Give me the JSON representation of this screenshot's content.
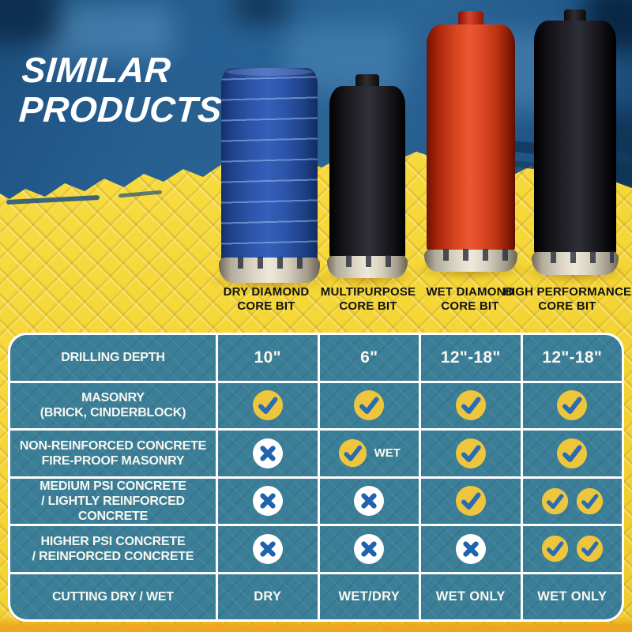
{
  "title": {
    "line1": "SIMILAR",
    "line2": "PRODUCTS"
  },
  "products": [
    {
      "line1": "DRY DIAMOND",
      "line2": "CORE BIT",
      "color": "blue"
    },
    {
      "line1": "MULTIPURPOSE",
      "line2": "CORE BIT",
      "color": "black"
    },
    {
      "line1": "WET DIAMOND",
      "line2": "CORE BIT",
      "color": "red"
    },
    {
      "line1": "HIGH PERFORMANCE",
      "line2": "CORE BIT",
      "color": "black"
    }
  ],
  "table": {
    "columns": [
      "DRY DIAMOND CORE BIT",
      "MULTIPURPOSE CORE BIT",
      "WET DIAMOND CORE BIT",
      "HIGH PERFORMANCE CORE BIT"
    ],
    "rows": [
      {
        "label": "DRILLING DEPTH",
        "label2": "",
        "cells": [
          {
            "type": "text",
            "value": "10\"",
            "size": "lg"
          },
          {
            "type": "text",
            "value": "6\"",
            "size": "lg"
          },
          {
            "type": "text",
            "value": "12\"-18\"",
            "size": "lg"
          },
          {
            "type": "text",
            "value": "12\"-18\"",
            "size": "lg"
          }
        ]
      },
      {
        "label": "MASONRY",
        "label2": "(BRICK, CINDERBLOCK)",
        "cells": [
          {
            "type": "check"
          },
          {
            "type": "check"
          },
          {
            "type": "check"
          },
          {
            "type": "check"
          }
        ]
      },
      {
        "label": "NON-REINFORCED CONCRETE",
        "label2": "FIRE-PROOF MASONRY",
        "cells": [
          {
            "type": "cross"
          },
          {
            "type": "check_text",
            "value": "WET"
          },
          {
            "type": "check"
          },
          {
            "type": "check"
          }
        ]
      },
      {
        "label": "MEDIUM PSI CONCRETE",
        "label2": "/ LIGHTLY REINFORCED CONCRETE",
        "cells": [
          {
            "type": "cross"
          },
          {
            "type": "cross"
          },
          {
            "type": "check"
          },
          {
            "type": "check2"
          }
        ]
      },
      {
        "label": "HIGHER PSI CONCRETE",
        "label2": "/ REINFORCED CONCRETE",
        "cells": [
          {
            "type": "cross"
          },
          {
            "type": "cross"
          },
          {
            "type": "cross"
          },
          {
            "type": "check2"
          }
        ]
      },
      {
        "label": "CUTTING DRY / WET",
        "label2": "",
        "cells": [
          {
            "type": "text",
            "value": "DRY",
            "size": "sm"
          },
          {
            "type": "text",
            "value": "WET/DRY",
            "size": "sm"
          },
          {
            "type": "text",
            "value": "WET ONLY",
            "size": "sm"
          },
          {
            "type": "text",
            "value": "WET ONLY",
            "size": "sm"
          }
        ]
      }
    ]
  },
  "chart_data": {
    "type": "table",
    "title": "SIMILAR PRODUCTS",
    "columns": [
      "",
      "DRY DIAMOND CORE BIT",
      "MULTIPURPOSE CORE BIT",
      "WET DIAMOND CORE BIT",
      "HIGH PERFORMANCE CORE BIT"
    ],
    "rows": [
      [
        "DRILLING DEPTH",
        "10\"",
        "6\"",
        "12\"-18\"",
        "12\"-18\""
      ],
      [
        "MASONRY (BRICK, CINDERBLOCK)",
        "✓",
        "✓",
        "✓",
        "✓"
      ],
      [
        "NON-REINFORCED CONCRETE FIRE-PROOF MASONRY",
        "✗",
        "✓ WET",
        "✓",
        "✓"
      ],
      [
        "MEDIUM PSI CONCRETE / LIGHTLY REINFORCED CONCRETE",
        "✗",
        "✗",
        "✓",
        "✓✓"
      ],
      [
        "HIGHER PSI CONCRETE / REINFORCED CONCRETE",
        "✗",
        "✗",
        "✗",
        "✓✓"
      ],
      [
        "CUTTING DRY / WET",
        "DRY",
        "WET/DRY",
        "WET ONLY",
        "WET ONLY"
      ]
    ]
  },
  "colors": {
    "background_blue": "#235a8c",
    "background_yellow": "#f6d83a",
    "table_teal": "#3b7e97",
    "grid_white": "#ffffff",
    "check_circle": "#edc63e",
    "check_mark": "#2a6cb3",
    "cross_circle": "#ffffff",
    "cross_mark": "#1f63ae",
    "title_white": "#ffffff",
    "label_black": "#121210",
    "accent_orange": "#f0a51f",
    "bit_blue": "#2f57b0",
    "bit_black": "#1b1b1f",
    "bit_red": "#e04a26"
  }
}
